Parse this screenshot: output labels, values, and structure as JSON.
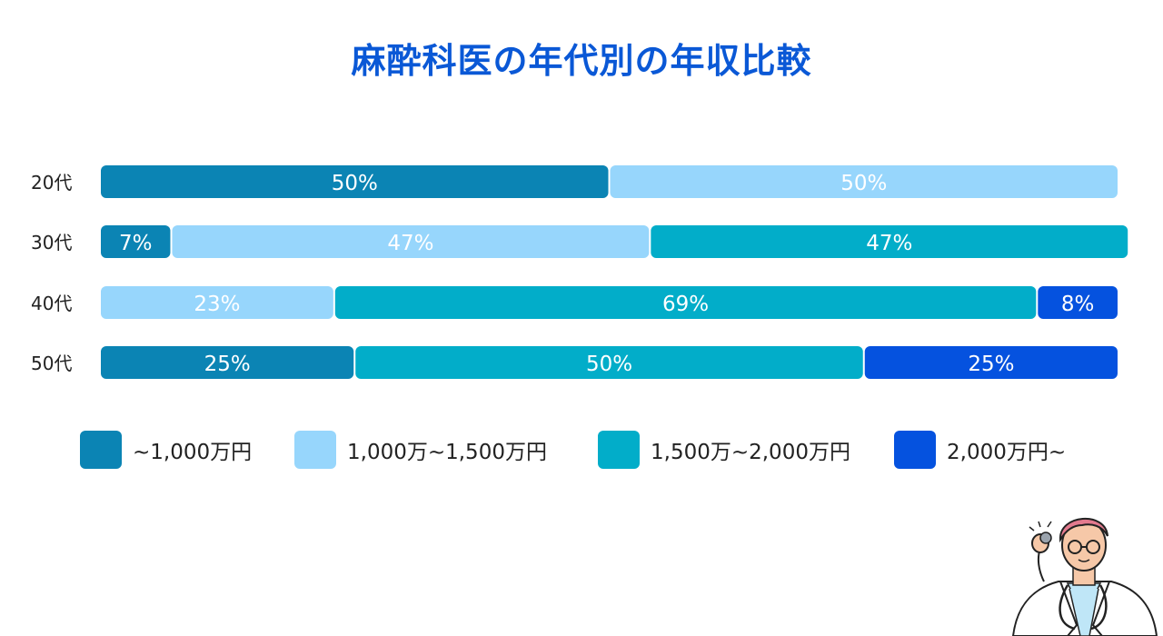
{
  "chart_data": {
    "type": "bar",
    "orientation": "horizontal",
    "stacked": "100%",
    "title": "麻酔科医の年代別の年収比較",
    "categories": [
      "20代",
      "30代",
      "40代",
      "50代"
    ],
    "series": [
      {
        "name": "~1,000万円",
        "values": [
          50,
          7,
          0,
          25
        ],
        "color": "#0b84b4"
      },
      {
        "name": "1,000万~1,500万円",
        "values": [
          50,
          47,
          23,
          0
        ],
        "color": "#97d6fc"
      },
      {
        "name": "1,500万~2,000万円",
        "values": [
          0,
          47,
          69,
          50
        ],
        "color": "#02adc9"
      },
      {
        "name": "2,000万円~",
        "values": [
          0,
          0,
          8,
          25
        ],
        "color": "#0552df"
      }
    ],
    "value_suffix": "%",
    "xlim": [
      0,
      100
    ],
    "grid": false,
    "legend_position": "bottom"
  },
  "colors": {
    "title": "#0a58d6",
    "label_text": "#ffffff",
    "category_text": "#222222"
  },
  "illustration": {
    "icon": "doctor-with-stethoscope-icon"
  }
}
